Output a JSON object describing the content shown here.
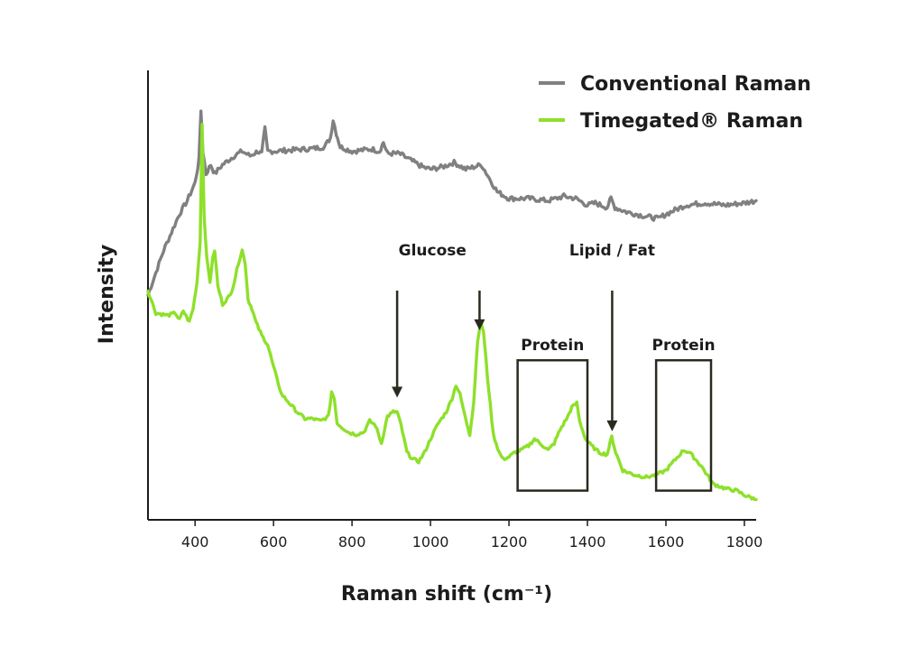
{
  "chart_data": {
    "type": "line",
    "title": "",
    "xlabel": "Raman shift (cm⁻¹)",
    "ylabel": "Intensity",
    "xlim": [
      280,
      1830
    ],
    "ylim": [
      0,
      100
    ],
    "x_ticks": [
      400,
      600,
      800,
      1000,
      1200,
      1400,
      1600,
      1800
    ],
    "y_ticks": [],
    "grid": false,
    "legend_position": "top-right",
    "series": [
      {
        "name": "Conventional Raman",
        "color": "#808080",
        "points": [
          [
            280,
            50
          ],
          [
            300,
            55
          ],
          [
            320,
            60
          ],
          [
            340,
            64
          ],
          [
            360,
            68
          ],
          [
            380,
            71
          ],
          [
            400,
            75
          ],
          [
            410,
            80
          ],
          [
            415,
            91
          ],
          [
            420,
            82
          ],
          [
            428,
            77
          ],
          [
            440,
            79
          ],
          [
            450,
            77
          ],
          [
            470,
            79
          ],
          [
            500,
            81
          ],
          [
            520,
            82
          ],
          [
            540,
            81
          ],
          [
            560,
            82
          ],
          [
            570,
            81.5
          ],
          [
            578,
            87
          ],
          [
            585,
            82
          ],
          [
            600,
            82
          ],
          [
            650,
            82.3
          ],
          [
            700,
            82.6
          ],
          [
            730,
            83
          ],
          [
            745,
            85
          ],
          [
            752,
            89
          ],
          [
            760,
            86
          ],
          [
            770,
            83
          ],
          [
            800,
            82
          ],
          [
            850,
            82.5
          ],
          [
            870,
            82
          ],
          [
            880,
            84
          ],
          [
            890,
            81.5
          ],
          [
            920,
            81.5
          ],
          [
            950,
            80
          ],
          [
            980,
            78.5
          ],
          [
            1000,
            78
          ],
          [
            1030,
            78.5
          ],
          [
            1060,
            79.5
          ],
          [
            1090,
            78
          ],
          [
            1110,
            78.5
          ],
          [
            1130,
            79
          ],
          [
            1150,
            76
          ],
          [
            1170,
            73
          ],
          [
            1200,
            71.5
          ],
          [
            1250,
            71.5
          ],
          [
            1300,
            71
          ],
          [
            1340,
            72
          ],
          [
            1370,
            71.5
          ],
          [
            1400,
            70
          ],
          [
            1420,
            70.5
          ],
          [
            1450,
            69.5
          ],
          [
            1460,
            71.5
          ],
          [
            1470,
            69.5
          ],
          [
            1500,
            68.5
          ],
          [
            1550,
            67.5
          ],
          [
            1580,
            67
          ],
          [
            1600,
            68
          ],
          [
            1650,
            70
          ],
          [
            1700,
            70.5
          ],
          [
            1750,
            70
          ],
          [
            1800,
            70.5
          ],
          [
            1830,
            71
          ]
        ]
      },
      {
        "name": "Timegated® Raman",
        "color": "#8ee02a",
        "points": [
          [
            280,
            51
          ],
          [
            300,
            46
          ],
          [
            330,
            45.5
          ],
          [
            350,
            46
          ],
          [
            360,
            44.5
          ],
          [
            370,
            46.5
          ],
          [
            385,
            44
          ],
          [
            395,
            47
          ],
          [
            405,
            53
          ],
          [
            413,
            62
          ],
          [
            418,
            88
          ],
          [
            423,
            68
          ],
          [
            430,
            58
          ],
          [
            438,
            53
          ],
          [
            445,
            58
          ],
          [
            450,
            60
          ],
          [
            458,
            52
          ],
          [
            470,
            48
          ],
          [
            490,
            50
          ],
          [
            500,
            53
          ],
          [
            510,
            57
          ],
          [
            520,
            60
          ],
          [
            528,
            57
          ],
          [
            535,
            49
          ],
          [
            545,
            47
          ],
          [
            555,
            44
          ],
          [
            570,
            41
          ],
          [
            585,
            39
          ],
          [
            600,
            34
          ],
          [
            620,
            28
          ],
          [
            640,
            26
          ],
          [
            660,
            24
          ],
          [
            680,
            22.5
          ],
          [
            700,
            22.5
          ],
          [
            720,
            22
          ],
          [
            740,
            23
          ],
          [
            748,
            28.5
          ],
          [
            755,
            27
          ],
          [
            762,
            21.5
          ],
          [
            790,
            19.5
          ],
          [
            810,
            19
          ],
          [
            830,
            19.5
          ],
          [
            845,
            22
          ],
          [
            860,
            21
          ],
          [
            875,
            17
          ],
          [
            890,
            23
          ],
          [
            905,
            24
          ],
          [
            915,
            24
          ],
          [
            925,
            21
          ],
          [
            940,
            15
          ],
          [
            955,
            13.5
          ],
          [
            970,
            13
          ],
          [
            985,
            15
          ],
          [
            1000,
            18
          ],
          [
            1020,
            21.5
          ],
          [
            1040,
            24
          ],
          [
            1055,
            27
          ],
          [
            1065,
            30
          ],
          [
            1075,
            28
          ],
          [
            1088,
            23
          ],
          [
            1100,
            19
          ],
          [
            1110,
            26
          ],
          [
            1120,
            40
          ],
          [
            1128,
            44
          ],
          [
            1135,
            42
          ],
          [
            1145,
            32
          ],
          [
            1160,
            19
          ],
          [
            1175,
            15
          ],
          [
            1185,
            13.5
          ],
          [
            1200,
            14
          ],
          [
            1215,
            15
          ],
          [
            1230,
            15.5
          ],
          [
            1250,
            16.5
          ],
          [
            1265,
            18
          ],
          [
            1280,
            17
          ],
          [
            1300,
            15.5
          ],
          [
            1315,
            17
          ],
          [
            1330,
            20
          ],
          [
            1350,
            23
          ],
          [
            1360,
            25
          ],
          [
            1373,
            26
          ],
          [
            1380,
            22
          ],
          [
            1395,
            18
          ],
          [
            1410,
            16.5
          ],
          [
            1430,
            15
          ],
          [
            1450,
            14.5
          ],
          [
            1462,
            18.5
          ],
          [
            1472,
            15
          ],
          [
            1490,
            11
          ],
          [
            1520,
            10
          ],
          [
            1550,
            9.5
          ],
          [
            1575,
            10
          ],
          [
            1600,
            11
          ],
          [
            1620,
            13
          ],
          [
            1645,
            15.5
          ],
          [
            1660,
            15
          ],
          [
            1690,
            12
          ],
          [
            1720,
            8
          ],
          [
            1750,
            7
          ],
          [
            1780,
            6.5
          ],
          [
            1800,
            5.5
          ],
          [
            1830,
            4.5
          ]
        ]
      }
    ],
    "annotations": [
      {
        "label": "Glucose",
        "type": "arrows",
        "label_x": 1005,
        "label_y": 60,
        "arrows": [
          [
            915,
            51,
            27
          ],
          [
            1125,
            51,
            42
          ]
        ]
      },
      {
        "label": "Lipid / Fat",
        "type": "arrows",
        "label_x": 1463,
        "label_y": 60,
        "arrows": [
          [
            1463,
            51,
            19.5
          ]
        ]
      },
      {
        "label": "Protein",
        "type": "box",
        "x0": 1222,
        "x1": 1400,
        "y0": 6.5,
        "y1": 35.5,
        "label_y": 39
      },
      {
        "label": "Protein",
        "type": "box",
        "x0": 1575,
        "x1": 1715,
        "y0": 6.5,
        "y1": 35.5,
        "label_y": 39
      }
    ]
  }
}
